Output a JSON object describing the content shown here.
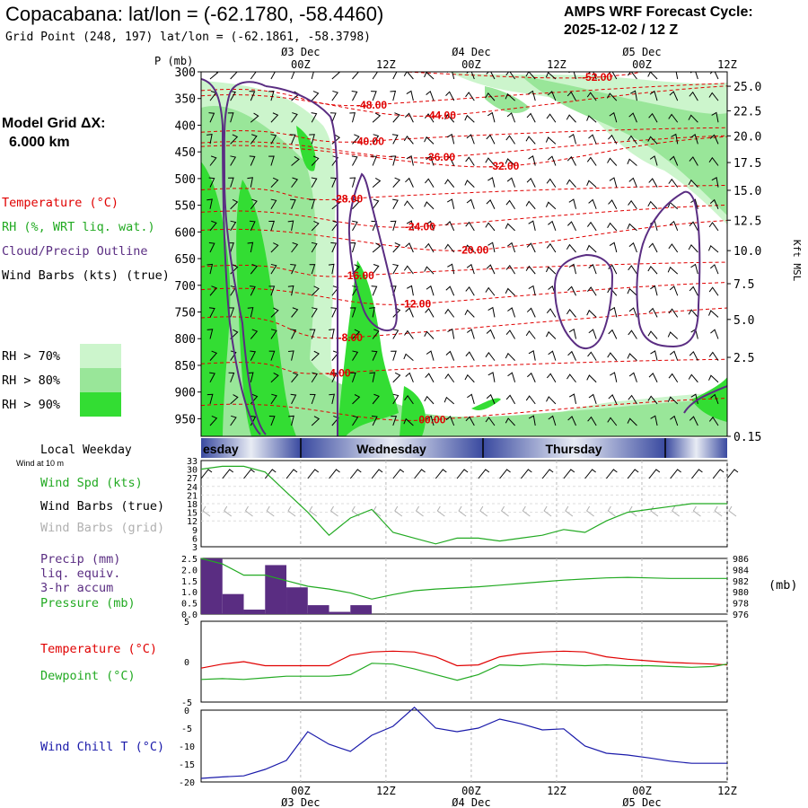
{
  "header": {
    "title": "Copacabana:  lat/lon = (-62.1780, -58.4460)",
    "subtitle": "Grid Point (248, 197) lat/lon = (-62.1861, -58.3798)",
    "cycle_label": "AMPS WRF Forecast Cycle:",
    "cycle_value": "2025-12-02 / 12  Z"
  },
  "legend": {
    "model_grid_label": "Model Grid ΔX:",
    "model_grid_value": "6.000 km",
    "temperature": "Temperature (°C)",
    "rh": "RH (%, WRT liq. wat.)",
    "cloud": "Cloud/Precip Outline",
    "barbs": "Wind Barbs (kts) (true)",
    "rh70": "RH > 70%",
    "rh80": "RH > 80%",
    "rh90": "RH > 90%",
    "rh_colors": [
      "#ccf5cc",
      "#99e699",
      "#33dd33"
    ]
  },
  "colors": {
    "temperature": "#e00000",
    "rh": "#22aa22",
    "cloud": "#5a2d82",
    "wind_grid": "#b0b0b0",
    "precip_bar": "#5a2d82",
    "wind_chill": "#1a1aaa"
  },
  "time_axis": {
    "top_days": [
      "03 Dec",
      "04 Dec",
      "05 Dec"
    ],
    "bottom_days": [
      "03 Dec",
      "04 Dec",
      "05 Dec"
    ],
    "hour_labels": [
      "00Z",
      "12Z",
      "00Z",
      "12Z",
      "00Z",
      "12Z"
    ],
    "hour_positions": [
      36,
      48,
      60,
      72,
      84,
      96
    ],
    "range_hours": [
      22,
      96
    ]
  },
  "weekday": {
    "label": "Local Weekday",
    "sublabel": "Wind at 10 m",
    "days": [
      "esday",
      "Wednesday",
      "Thursday"
    ]
  },
  "chart_data": [
    {
      "type": "heatmap",
      "name": "cross-section",
      "p_axis_label": "P (mb)",
      "pressure_levels": [
        300,
        350,
        400,
        450,
        500,
        550,
        600,
        650,
        700,
        750,
        800,
        850,
        900,
        950
      ],
      "height_label": "Kft MSL",
      "height_ticks": [
        "25.0",
        "22.5",
        "20.0",
        "17.5",
        "15.0",
        "12.5",
        "10.0",
        "7.5",
        "5.0",
        "2.5",
        "0.15"
      ],
      "height_tick_pressures": [
        327,
        373,
        420,
        470,
        522,
        578,
        635,
        697,
        764,
        835,
        983
      ],
      "temperature_contours": [
        {
          "label": "-52.00",
          "hour": 77.7,
          "p": 310
        },
        {
          "label": "-48.00",
          "hour": 46.0,
          "p": 362
        },
        {
          "label": "-44.00",
          "hour": 55.7,
          "p": 382
        },
        {
          "label": "-40.00",
          "hour": 45.6,
          "p": 430
        },
        {
          "label": "-36.00",
          "hour": 55.6,
          "p": 460
        },
        {
          "label": "-32.00",
          "hour": 64.6,
          "p": 477
        },
        {
          "label": "-28.00",
          "hour": 42.6,
          "p": 538
        },
        {
          "label": "-24.00",
          "hour": 52.8,
          "p": 590
        },
        {
          "label": "-20.00",
          "hour": 60.3,
          "p": 634
        },
        {
          "label": "-16.00",
          "hour": 44.2,
          "p": 682
        },
        {
          "label": "-12.00",
          "hour": 52.2,
          "p": 735
        },
        {
          "label": "-8.00",
          "hour": 43.0,
          "p": 798
        },
        {
          "label": "-4.00",
          "hour": 41.3,
          "p": 864
        },
        {
          "label": "00.00",
          "hour": 54.5,
          "p": 952
        }
      ],
      "x_range_hours": [
        22,
        96
      ],
      "p_range_mb": [
        300,
        983
      ]
    },
    {
      "type": "line",
      "name": "wind-speed",
      "label": "Wind Spd (kts)",
      "label_barbs_true": "Wind Barbs (true)",
      "label_barbs_grid": "Wind Barbs (grid)",
      "y_ticks": [
        3,
        6,
        9,
        12,
        15,
        18,
        21,
        24,
        27,
        30,
        33
      ],
      "ylim": [
        3,
        33
      ],
      "x": [
        22,
        25,
        28,
        31,
        34,
        37,
        40,
        43,
        46,
        49,
        52,
        55,
        58,
        61,
        64,
        67,
        70,
        73,
        76,
        79,
        82,
        85,
        88,
        91,
        94,
        96
      ],
      "values": [
        30,
        31,
        31,
        29,
        22,
        15,
        7,
        13,
        16,
        8,
        6,
        4,
        6,
        6,
        5,
        6,
        7,
        9,
        8,
        12,
        15,
        16,
        17,
        18,
        18,
        18
      ]
    },
    {
      "type": "bar",
      "name": "precip-pressure",
      "label_precip": "Precip (mm)",
      "label_liq": "liq. equiv.",
      "label_accum": "3-hr accum",
      "label_pressure": "Pressure (mb)",
      "units_label": "(mb)",
      "precip_ticks": [
        "0.0",
        "0.5",
        "1.0",
        "1.5",
        "2.0",
        "2.5"
      ],
      "pressure_ticks": [
        "976",
        "978",
        "980",
        "982",
        "984",
        "986"
      ],
      "precip_ylim": [
        0,
        2.5
      ],
      "pressure_ylim": [
        976,
        986
      ],
      "bar_start_hours": [
        22,
        25,
        28,
        31,
        34,
        37,
        40,
        43
      ],
      "bar_width_hours": 3,
      "precip_values": [
        2.5,
        0.9,
        0.2,
        2.2,
        1.2,
        0.4,
        0.1,
        0.4
      ],
      "pressure_x": [
        22,
        25,
        28,
        31,
        34,
        37,
        40,
        43,
        46,
        49,
        52,
        55,
        58,
        61,
        64,
        67,
        70,
        73,
        76,
        79,
        82,
        85,
        88,
        91,
        94,
        96
      ],
      "pressure_values": [
        986,
        985,
        983,
        983,
        982,
        981,
        980.5,
        979.8,
        978.7,
        979.5,
        980.2,
        980.5,
        980.7,
        980.9,
        981.2,
        981.5,
        981.8,
        982.1,
        982.3,
        982.5,
        982.6,
        982.5,
        982.4,
        982.4,
        982.4,
        982.4
      ]
    },
    {
      "type": "line",
      "name": "temperature-dewpoint",
      "label_temp": "Temperature (°C)",
      "label_dew": "Dewpoint (°C)",
      "y_ticks": [
        "5",
        "0",
        "-5"
      ],
      "ylim": [
        -5,
        5
      ],
      "x": [
        22,
        25,
        28,
        31,
        34,
        37,
        40,
        43,
        46,
        49,
        52,
        55,
        58,
        61,
        64,
        67,
        70,
        73,
        76,
        79,
        82,
        85,
        88,
        91,
        94,
        96
      ],
      "temperature": [
        -0.8,
        -0.3,
        0,
        -0.5,
        -0.5,
        -0.5,
        -0.5,
        0.8,
        1.2,
        1.3,
        1.2,
        0.6,
        -0.5,
        -0.4,
        0.6,
        1.0,
        1.2,
        1.3,
        1.2,
        0.6,
        0.3,
        0.1,
        -0.1,
        -0.2,
        -0.3,
        -0.4
      ],
      "dewpoint": [
        -2.2,
        -2.1,
        -2.2,
        -2.0,
        -1.8,
        -1.8,
        -1.8,
        -1.6,
        -0.2,
        -0.3,
        -0.9,
        -1.6,
        -2.3,
        -1.6,
        -0.4,
        -0.5,
        -0.3,
        -0.4,
        -0.5,
        -0.4,
        -0.5,
        -0.5,
        -0.6,
        -0.7,
        -0.6,
        -0.3
      ]
    },
    {
      "type": "line",
      "name": "wind-chill",
      "label": "Wind Chill T (°C)",
      "y_ticks": [
        "0",
        "-5",
        "-10",
        "-15",
        "-20"
      ],
      "ylim": [
        -20,
        0
      ],
      "x": [
        22,
        25,
        28,
        31,
        34,
        37,
        40,
        43,
        46,
        49,
        52,
        55,
        58,
        61,
        64,
        67,
        70,
        73,
        76,
        79,
        82,
        85,
        88,
        91,
        94,
        96
      ],
      "values": [
        -19,
        -18.6,
        -18.3,
        -16.5,
        -14,
        -6,
        -9.5,
        -11.5,
        -7,
        -4.5,
        0.8,
        -5,
        -6,
        -5,
        -2.5,
        -3.8,
        -5.5,
        -5.2,
        -10,
        -12,
        -12.5,
        -13.3,
        -14.2,
        -14.8,
        -14.8,
        -14.8
      ]
    }
  ]
}
